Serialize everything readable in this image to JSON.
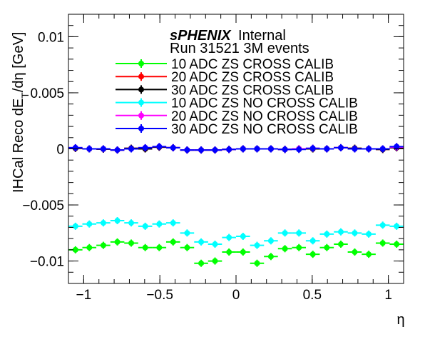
{
  "chart_data": {
    "type": "scatter",
    "title_bold": "sPHENIX",
    "title_rest": "Internal",
    "subtitle": "Run 31521 3M events",
    "xlabel": "η",
    "ylabel_main": "IHCal Reco dE",
    "ylabel_sub": "T",
    "ylabel_tail": "/dη [GeV]",
    "xlim": [
      -1.1,
      1.1
    ],
    "ylim": [
      -0.012,
      0.012
    ],
    "x_ticks": [
      -1,
      -0.5,
      0,
      0.5,
      1
    ],
    "x_tick_labels": [
      "−1",
      "−0.5",
      "0",
      "0.5",
      "1"
    ],
    "y_ticks": [
      -0.01,
      -0.005,
      0,
      0.005,
      0.01
    ],
    "y_tick_labels": [
      "−0.01",
      "−0.005",
      "0",
      "0.005",
      "0.01"
    ],
    "bin_half_width": 0.0458,
    "x": [
      -1.054,
      -0.963,
      -0.871,
      -0.779,
      -0.688,
      -0.596,
      -0.504,
      -0.413,
      -0.321,
      -0.229,
      -0.138,
      -0.046,
      0.046,
      0.138,
      0.229,
      0.321,
      0.413,
      0.504,
      0.596,
      0.688,
      0.779,
      0.871,
      0.963,
      1.054
    ],
    "series": [
      {
        "name": "10 ADC ZS CROSS CALIB",
        "color": "#00ff00",
        "values": [
          -0.009,
          -0.0088,
          -0.0086,
          -0.0083,
          -0.0084,
          -0.0088,
          -0.0088,
          -0.0083,
          -0.0088,
          -0.0102,
          -0.01,
          -0.0092,
          -0.0092,
          -0.0102,
          -0.0096,
          -0.0089,
          -0.0088,
          -0.0094,
          -0.0088,
          -0.0085,
          -0.0092,
          -0.0094,
          -0.0084,
          -0.0085
        ]
      },
      {
        "name": "20 ADC ZS CROSS CALIB",
        "color": "#ff0000",
        "values": [
          5e-05,
          0.0,
          -2e-05,
          -0.0001,
          5e-05,
          0.0,
          0.00015,
          0.0001,
          -0.0001,
          -0.0001,
          -0.0001,
          -5e-05,
          0.0,
          0.0,
          0.0,
          -5e-05,
          0.0,
          0.0,
          0.0,
          0.0001,
          5e-05,
          0.0,
          -5e-05,
          0.0001
        ]
      },
      {
        "name": "30 ADC ZS CROSS CALIB",
        "color": "#000000",
        "values": [
          5e-05,
          0.0,
          -2e-05,
          -0.0001,
          5e-05,
          0.0,
          0.00015,
          0.0001,
          -0.0001,
          -0.0001,
          -0.0001,
          -5e-05,
          0.0,
          0.0,
          0.0,
          -5e-05,
          0.0,
          0.0,
          0.0,
          0.0001,
          5e-05,
          0.0,
          -5e-05,
          0.0001
        ]
      },
      {
        "name": "10 ADC ZS NO CROSS CALIB",
        "color": "#00ffff",
        "values": [
          -0.0069,
          -0.0067,
          -0.0066,
          -0.0064,
          -0.0066,
          -0.0069,
          -0.0067,
          -0.0066,
          -0.0075,
          -0.0083,
          -0.0085,
          -0.0079,
          -0.0078,
          -0.0086,
          -0.0082,
          -0.0075,
          -0.0075,
          -0.0082,
          -0.0076,
          -0.0074,
          -0.0075,
          -0.0076,
          -0.0068,
          -0.0069
        ]
      },
      {
        "name": "20 ADC ZS NO CROSS CALIB",
        "color": "#ff00ff",
        "values": [
          0.0001,
          0.0,
          0.0,
          -0.0001,
          0.0,
          0.0001,
          0.0002,
          0.0001,
          -0.0001,
          -0.0001,
          -0.0001,
          -5e-05,
          0.0,
          0.0,
          0.0,
          -5e-05,
          0.0,
          5e-05,
          0.0,
          0.0001,
          0.0,
          0.0,
          0.0,
          0.00015
        ]
      },
      {
        "name": "30 ADC ZS NO CROSS CALIB",
        "color": "#0000ff",
        "values": [
          0.0001,
          0.0,
          0.0,
          -0.0001,
          0.0,
          0.0001,
          0.0002,
          0.0001,
          -0.0001,
          -0.0001,
          -0.0001,
          -5e-05,
          0.0,
          0.0,
          0.0,
          -5e-05,
          -5e-05,
          5e-05,
          0.0,
          0.0001,
          0.0,
          0.0,
          0.0,
          0.0002
        ]
      }
    ]
  }
}
